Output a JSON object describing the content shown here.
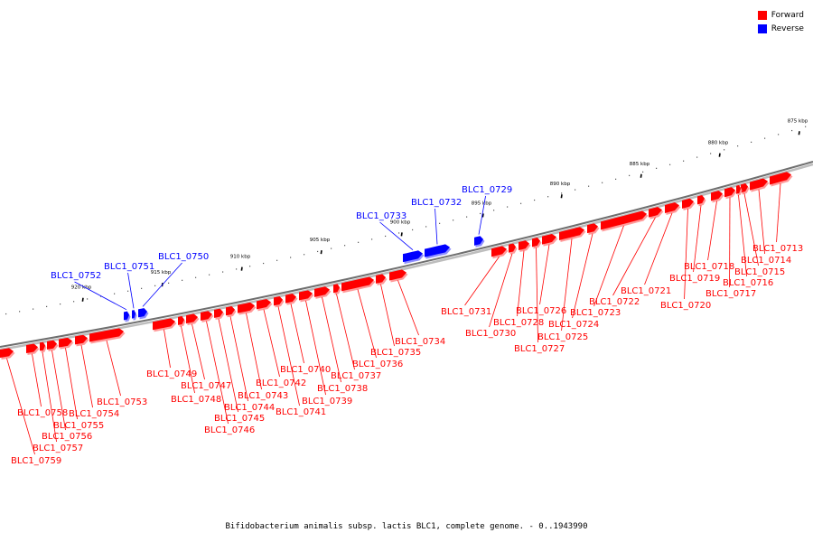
{
  "legend": {
    "forward_label": "Forward",
    "reverse_label": "Reverse",
    "forward_color": "#ff0000",
    "reverse_color": "#0000ff"
  },
  "footer": {
    "caption": "Bifidobacterium animalis subsp. lactis BLC1, complete genome. - 0..1943990"
  },
  "scale": {
    "unit": "kbp",
    "ticks": [
      "875 kbp",
      "880 kbp",
      "885 kbp",
      "890 kbp",
      "895 kbp",
      "900 kbp",
      "905 kbp",
      "910 kbp",
      "915 kbp",
      "920 kbp"
    ]
  },
  "genes": [
    {
      "id": "BLC1_0713",
      "strand": "forward"
    },
    {
      "id": "BLC1_0714",
      "strand": "forward"
    },
    {
      "id": "BLC1_0715",
      "strand": "forward"
    },
    {
      "id": "BLC1_0716",
      "strand": "forward"
    },
    {
      "id": "BLC1_0717",
      "strand": "forward"
    },
    {
      "id": "BLC1_0718",
      "strand": "forward"
    },
    {
      "id": "BLC1_0719",
      "strand": "forward"
    },
    {
      "id": "BLC1_0720",
      "strand": "forward"
    },
    {
      "id": "BLC1_0721",
      "strand": "forward"
    },
    {
      "id": "BLC1_0722",
      "strand": "forward"
    },
    {
      "id": "BLC1_0723",
      "strand": "forward"
    },
    {
      "id": "BLC1_0724",
      "strand": "forward"
    },
    {
      "id": "BLC1_0725",
      "strand": "forward"
    },
    {
      "id": "BLC1_0726",
      "strand": "forward"
    },
    {
      "id": "BLC1_0727",
      "strand": "forward"
    },
    {
      "id": "BLC1_0728",
      "strand": "forward"
    },
    {
      "id": "BLC1_0729",
      "strand": "reverse"
    },
    {
      "id": "BLC1_0730",
      "strand": "forward"
    },
    {
      "id": "BLC1_0731",
      "strand": "forward"
    },
    {
      "id": "BLC1_0732",
      "strand": "reverse"
    },
    {
      "id": "BLC1_0733",
      "strand": "reverse"
    },
    {
      "id": "BLC1_0734",
      "strand": "forward"
    },
    {
      "id": "BLC1_0735",
      "strand": "forward"
    },
    {
      "id": "BLC1_0736",
      "strand": "forward"
    },
    {
      "id": "BLC1_0737",
      "strand": "forward"
    },
    {
      "id": "BLC1_0738",
      "strand": "forward"
    },
    {
      "id": "BLC1_0739",
      "strand": "forward"
    },
    {
      "id": "BLC1_0740",
      "strand": "forward"
    },
    {
      "id": "BLC1_0741",
      "strand": "forward"
    },
    {
      "id": "BLC1_0742",
      "strand": "forward"
    },
    {
      "id": "BLC1_0743",
      "strand": "forward"
    },
    {
      "id": "BLC1_0744",
      "strand": "forward"
    },
    {
      "id": "BLC1_0745",
      "strand": "forward"
    },
    {
      "id": "BLC1_0746",
      "strand": "forward"
    },
    {
      "id": "BLC1_0747",
      "strand": "forward"
    },
    {
      "id": "BLC1_0748",
      "strand": "forward"
    },
    {
      "id": "BLC1_0749",
      "strand": "forward"
    },
    {
      "id": "BLC1_0750",
      "strand": "reverse"
    },
    {
      "id": "BLC1_0751",
      "strand": "reverse"
    },
    {
      "id": "BLC1_0752",
      "strand": "reverse"
    },
    {
      "id": "BLC1_0753",
      "strand": "forward"
    },
    {
      "id": "BLC1_0754",
      "strand": "forward"
    },
    {
      "id": "BLC1_0755",
      "strand": "forward"
    },
    {
      "id": "BLC1_0756",
      "strand": "forward"
    },
    {
      "id": "BLC1_0757",
      "strand": "forward"
    },
    {
      "id": "BLC1_0758",
      "strand": "forward"
    },
    {
      "id": "BLC1_0759",
      "strand": "forward"
    }
  ]
}
